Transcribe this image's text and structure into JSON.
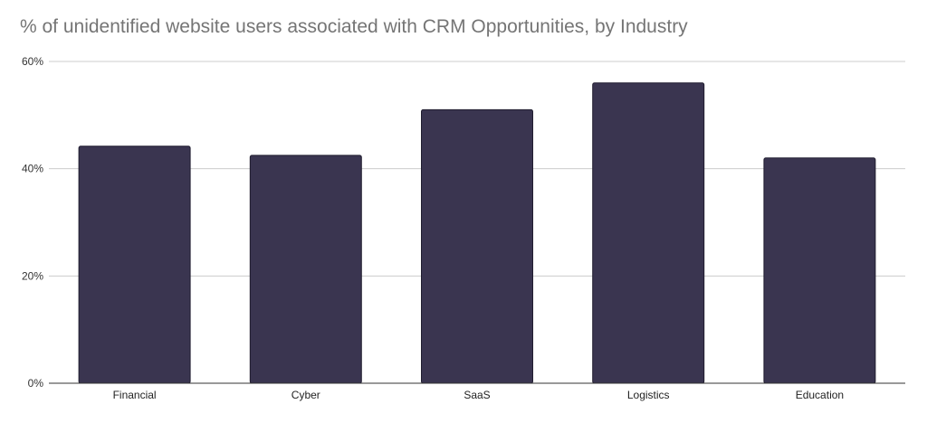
{
  "chart_data": {
    "type": "bar",
    "title": "% of unidentified website users associated with CRM Opportunities, by Industry",
    "categories": [
      "Financial",
      "Cyber",
      "SaaS",
      "Logistics",
      "Education"
    ],
    "series": [
      {
        "values": [
          44.2,
          42.5,
          51,
          56,
          42
        ]
      }
    ],
    "ylim": [
      0,
      60
    ],
    "yticks": [
      0,
      20,
      40,
      60
    ],
    "ytick_labels": [
      "0%",
      "20%",
      "40%",
      "60%"
    ],
    "xlabel": "",
    "ylabel": "",
    "grid": true,
    "bar_color": "#3a3550",
    "gridline_color": "#cccccc"
  }
}
